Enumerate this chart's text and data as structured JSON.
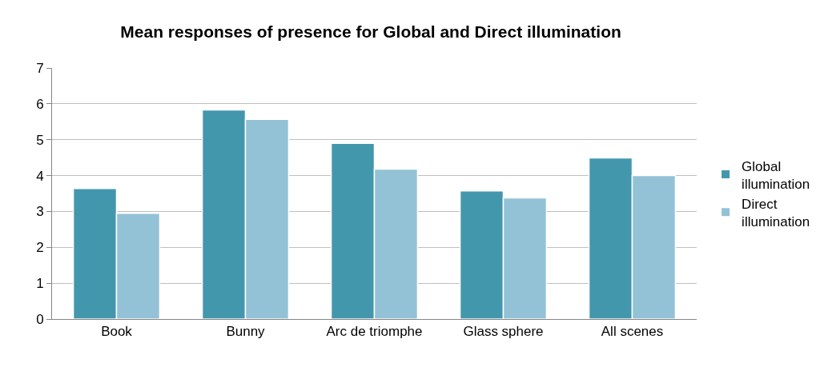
{
  "chart_data": {
    "type": "bar",
    "title": "Mean responses of presence for Global and Direct illumination",
    "categories": [
      "Book",
      "Bunny",
      "Arc de triomphe",
      "Glass sphere",
      "All scenes"
    ],
    "series": [
      {
        "name": "Global illumination",
        "color": "#4397ad",
        "values": [
          3.64,
          5.83,
          4.9,
          3.57,
          4.49
        ]
      },
      {
        "name": "Direct illumination",
        "color": "#93c2d6",
        "values": [
          2.95,
          5.57,
          4.18,
          3.38,
          4.0
        ]
      }
    ],
    "ylim": [
      0,
      7
    ],
    "yticks": [
      0,
      1,
      2,
      3,
      4,
      5,
      6,
      7
    ],
    "grid": "y",
    "legend": "right"
  }
}
